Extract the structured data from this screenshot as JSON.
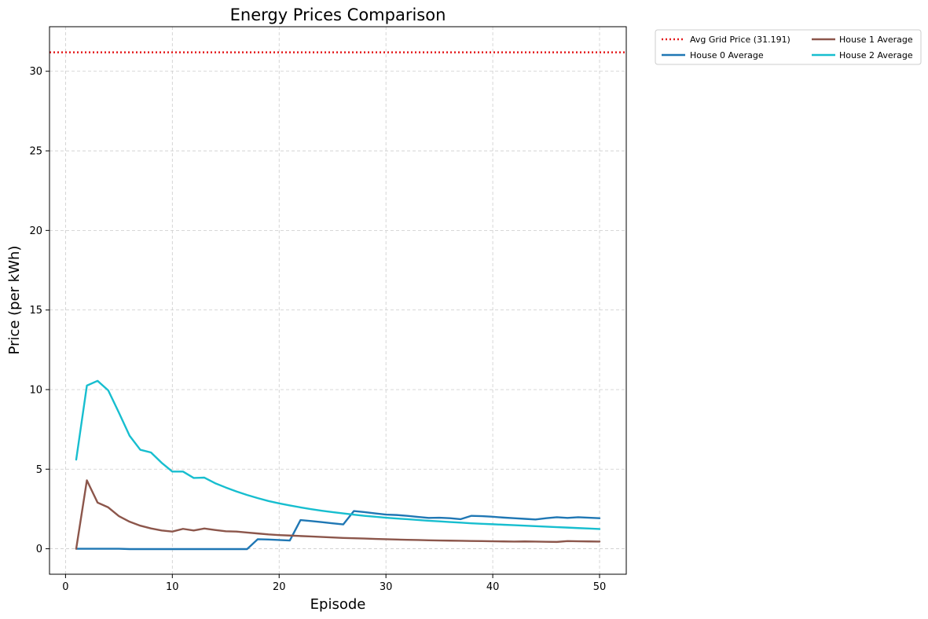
{
  "chart_data": {
    "type": "line",
    "title": "Energy Prices Comparison",
    "xlabel": "Episode",
    "ylabel": "Price (per kWh)",
    "xlim": [
      -1.5,
      52.5
    ],
    "ylim": [
      -1.6,
      32.8
    ],
    "xticks": [
      0,
      10,
      20,
      30,
      40,
      50
    ],
    "yticks": [
      0,
      5,
      10,
      15,
      20,
      25,
      30
    ],
    "grid": true,
    "legend_position": "outside-top-right",
    "reference_line": {
      "name": "Avg Grid Price (31.191)",
      "value": 31.191,
      "color": "#e41a1c",
      "style": "dotted"
    },
    "x": [
      1,
      2,
      3,
      4,
      5,
      6,
      7,
      8,
      9,
      10,
      11,
      12,
      13,
      14,
      15,
      16,
      17,
      18,
      19,
      20,
      21,
      22,
      23,
      24,
      25,
      26,
      27,
      28,
      29,
      30,
      31,
      32,
      33,
      34,
      35,
      36,
      37,
      38,
      39,
      40,
      41,
      42,
      43,
      44,
      45,
      46,
      47,
      48,
      49,
      50
    ],
    "series": [
      {
        "name": "House 0 Average",
        "color": "#1f77b4",
        "values": [
          0.0,
          0.0,
          0.0,
          0.0,
          0.0,
          -0.02,
          -0.02,
          -0.02,
          -0.02,
          -0.02,
          -0.02,
          -0.02,
          -0.02,
          -0.02,
          -0.02,
          -0.02,
          -0.02,
          0.6,
          0.58,
          0.55,
          0.52,
          1.8,
          1.74,
          1.67,
          1.6,
          1.53,
          2.37,
          2.3,
          2.22,
          2.15,
          2.12,
          2.07,
          2.0,
          1.94,
          1.95,
          1.92,
          1.86,
          2.07,
          2.05,
          2.01,
          1.96,
          1.92,
          1.88,
          1.84,
          1.92,
          1.98,
          1.94,
          1.98,
          1.95,
          1.92
        ]
      },
      {
        "name": "House 1 Average",
        "color": "#8c564b",
        "values": [
          0.0,
          4.3,
          2.9,
          2.6,
          2.05,
          1.7,
          1.45,
          1.28,
          1.15,
          1.08,
          1.25,
          1.15,
          1.27,
          1.18,
          1.1,
          1.08,
          1.02,
          0.96,
          0.9,
          0.86,
          0.83,
          0.8,
          0.77,
          0.74,
          0.71,
          0.68,
          0.66,
          0.64,
          0.62,
          0.6,
          0.58,
          0.56,
          0.55,
          0.53,
          0.52,
          0.51,
          0.5,
          0.49,
          0.48,
          0.47,
          0.46,
          0.45,
          0.46,
          0.45,
          0.44,
          0.43,
          0.48,
          0.47,
          0.46,
          0.45
        ]
      },
      {
        "name": "House 2 Average",
        "color": "#17becf",
        "values": [
          5.6,
          10.25,
          10.55,
          9.95,
          8.55,
          7.1,
          6.22,
          6.05,
          5.4,
          4.85,
          4.85,
          4.45,
          4.47,
          4.12,
          3.85,
          3.6,
          3.38,
          3.18,
          3.0,
          2.85,
          2.72,
          2.6,
          2.49,
          2.39,
          2.3,
          2.22,
          2.14,
          2.07,
          2.01,
          1.95,
          1.9,
          1.86,
          1.81,
          1.76,
          1.72,
          1.68,
          1.64,
          1.6,
          1.57,
          1.54,
          1.51,
          1.48,
          1.45,
          1.42,
          1.39,
          1.36,
          1.33,
          1.3,
          1.27,
          1.24
        ]
      }
    ],
    "legend": [
      {
        "label": "Avg Grid Price (31.191)",
        "color": "#e41a1c",
        "style": "dotted"
      },
      {
        "label": "House 0 Average",
        "color": "#1f77b4",
        "style": "solid"
      },
      {
        "label": "House 1 Average",
        "color": "#8c564b",
        "style": "solid"
      },
      {
        "label": "House 2 Average",
        "color": "#17becf",
        "style": "solid"
      }
    ]
  }
}
